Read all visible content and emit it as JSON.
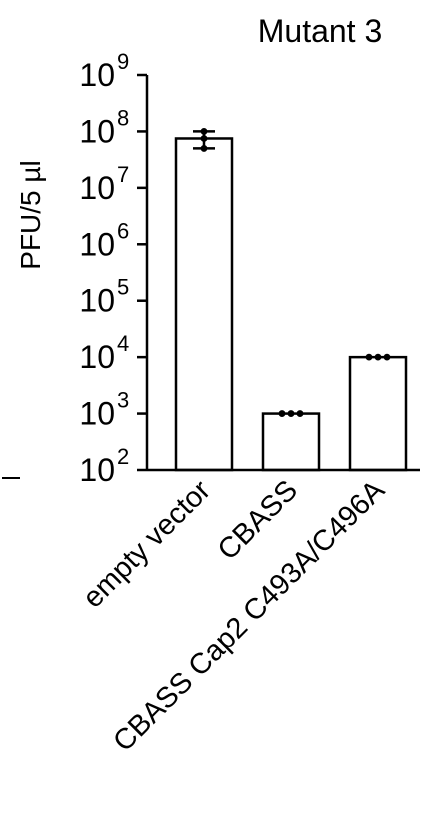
{
  "chart_data": {
    "type": "bar",
    "title": "Mutant 3",
    "ylabel": "PFU/5 µl",
    "xlabel": "",
    "yscale": "log",
    "ylim": [
      100,
      1000000000
    ],
    "yticks": [
      {
        "value": 100,
        "base": "10",
        "exp": "2"
      },
      {
        "value": 1000,
        "base": "10",
        "exp": "3"
      },
      {
        "value": 10000,
        "base": "10",
        "exp": "4"
      },
      {
        "value": 100000,
        "base": "10",
        "exp": "5"
      },
      {
        "value": 1000000,
        "base": "10",
        "exp": "6"
      },
      {
        "value": 10000000,
        "base": "10",
        "exp": "7"
      },
      {
        "value": 100000000,
        "base": "10",
        "exp": "8"
      },
      {
        "value": 1000000000,
        "base": "10",
        "exp": "9"
      }
    ],
    "categories": [
      "empty vector",
      "CBASS",
      "CBASS Cap2 C493A/C496A"
    ],
    "values": [
      75000000,
      1000,
      10000
    ],
    "points": [
      [
        100000000,
        75000000,
        50000000
      ],
      [
        1000,
        1000,
        1000
      ],
      [
        10000,
        10000,
        10000
      ]
    ],
    "error_bars": [
      [
        50000000,
        100000000
      ],
      null,
      null
    ],
    "grid": false,
    "legend": "none"
  }
}
